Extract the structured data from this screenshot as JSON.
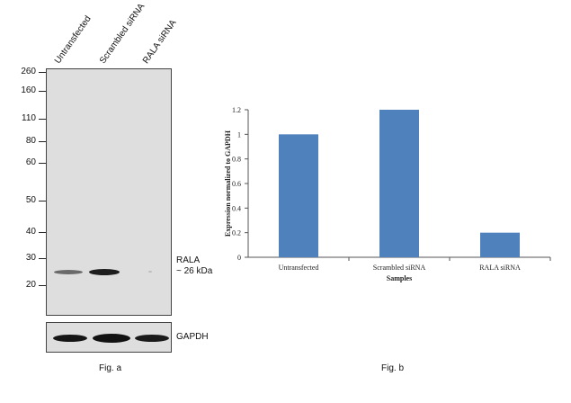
{
  "western_blot": {
    "lanes": [
      "Untransfected",
      "Scrambled siRNA",
      "RALA siRNA"
    ],
    "mw_markers": [
      "260",
      "160",
      "110",
      "80",
      "60",
      "50",
      "40",
      "30",
      "20"
    ],
    "target_label": "RALA",
    "target_size": "~ 26 kDa",
    "loading_control": "GAPDH",
    "caption": "Fig. a"
  },
  "chart_data": {
    "type": "bar",
    "categories": [
      "Untransfected",
      "Scrambled siRNA",
      "RALA siRNA"
    ],
    "values": [
      1.0,
      1.2,
      0.2
    ],
    "title": "",
    "xlabel": "Samples",
    "ylabel": "Expression normalized to GAPDH",
    "ylim": [
      0,
      1.2
    ],
    "yticks": [
      "0",
      "0.2",
      "0.4",
      "0.6",
      "0.8",
      "1",
      "1.2"
    ],
    "bar_color": "#4f81bd",
    "caption": "Fig. b"
  }
}
